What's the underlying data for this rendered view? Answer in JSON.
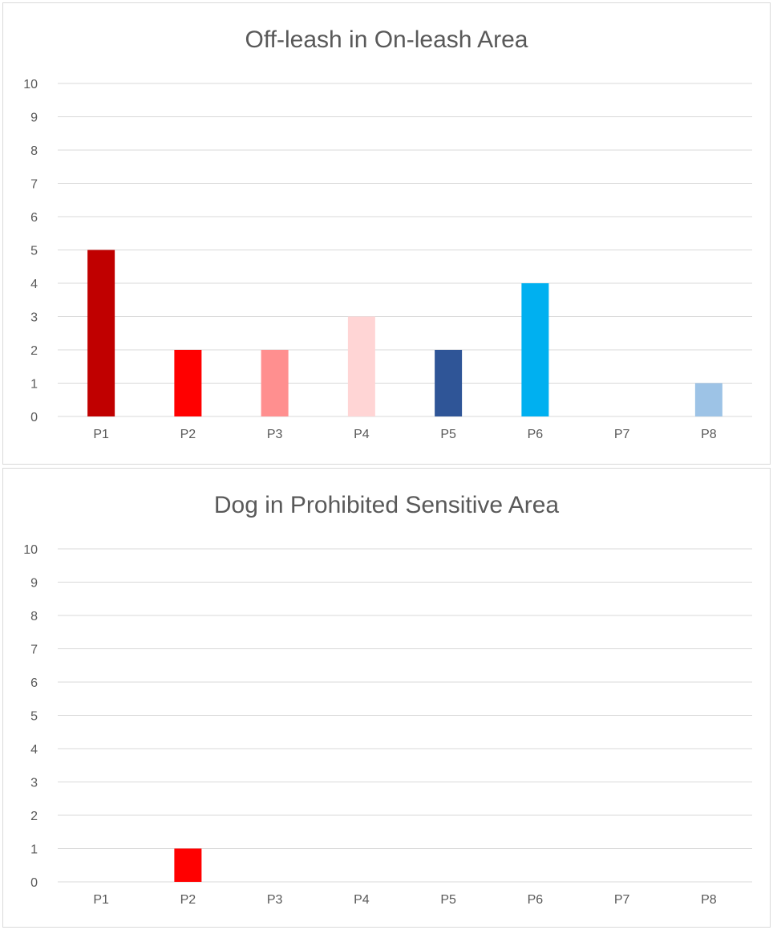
{
  "chart_data": [
    {
      "type": "bar",
      "title": "Off-leash in On-leash Area",
      "categories": [
        "P1",
        "P2",
        "P3",
        "P4",
        "P5",
        "P6",
        "P7",
        "P8"
      ],
      "values": [
        5,
        2,
        2,
        3,
        2,
        4,
        0,
        1
      ],
      "bar_colors": [
        "#c00000",
        "#ff0000",
        "#ff8f8f",
        "#ffd5d5",
        "#2f5597",
        "#00b0f0",
        "#9dc3e6",
        "#9dc3e6"
      ],
      "xlabel": "",
      "ylabel": "",
      "ylim": [
        0,
        10
      ],
      "yticks": [
        "0",
        "1",
        "2",
        "3",
        "4",
        "5",
        "6",
        "7",
        "8",
        "9",
        "10"
      ],
      "grid": true,
      "legend": "none"
    },
    {
      "type": "bar",
      "title": "Dog in Prohibited Sensitive Area",
      "categories": [
        "P1",
        "P2",
        "P3",
        "P4",
        "P5",
        "P6",
        "P7",
        "P8"
      ],
      "values": [
        0,
        1,
        0,
        0,
        0,
        0,
        0,
        0
      ],
      "bar_colors": [
        "#c00000",
        "#ff0000",
        "#ff8f8f",
        "#ffd5d5",
        "#2f5597",
        "#00b0f0",
        "#9dc3e6",
        "#9dc3e6"
      ],
      "xlabel": "",
      "ylabel": "",
      "ylim": [
        0,
        10
      ],
      "yticks": [
        "0",
        "1",
        "2",
        "3",
        "4",
        "5",
        "6",
        "7",
        "8",
        "9",
        "10"
      ],
      "grid": true,
      "legend": "none"
    }
  ],
  "colors": {
    "gridline": "#d9d9d9",
    "text": "#595959",
    "border": "#d9d9d9"
  }
}
